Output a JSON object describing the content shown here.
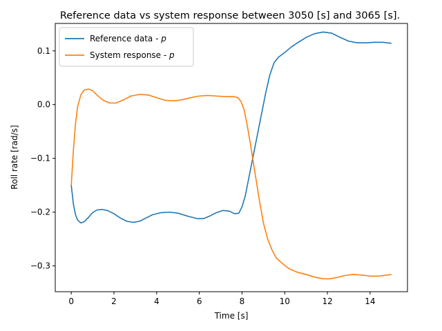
{
  "chart_data": {
    "type": "line",
    "title": "Reference data vs system response between 3050 [s] and 3065 [s].",
    "xlabel": "Time [s]",
    "ylabel": "Roll rate [rad/s]",
    "xlim": [
      -0.75,
      15.75
    ],
    "ylim": [
      -0.348,
      0.151
    ],
    "xticks": [
      0,
      2,
      4,
      6,
      8,
      10,
      12,
      14
    ],
    "yticks": [
      -0.3,
      -0.2,
      -0.1,
      0.0,
      0.1
    ],
    "ytick_labels": [
      "−0.3",
      "−0.2",
      "−0.1",
      "0.0",
      "0.1"
    ],
    "grid": false,
    "legend": "top-left",
    "series": [
      {
        "name_prefix": "Reference data - ",
        "name_symbol": "p",
        "color": "#1f77b4",
        "points": [
          [
            0.0,
            -0.15
          ],
          [
            0.1,
            -0.185
          ],
          [
            0.2,
            -0.205
          ],
          [
            0.3,
            -0.215
          ],
          [
            0.45,
            -0.22
          ],
          [
            0.6,
            -0.218
          ],
          [
            0.8,
            -0.21
          ],
          [
            1.0,
            -0.201
          ],
          [
            1.2,
            -0.196
          ],
          [
            1.45,
            -0.195
          ],
          [
            1.7,
            -0.197
          ],
          [
            2.0,
            -0.203
          ],
          [
            2.3,
            -0.211
          ],
          [
            2.6,
            -0.217
          ],
          [
            2.9,
            -0.219
          ],
          [
            3.2,
            -0.217
          ],
          [
            3.5,
            -0.211
          ],
          [
            3.8,
            -0.205
          ],
          [
            4.2,
            -0.201
          ],
          [
            4.6,
            -0.2
          ],
          [
            5.0,
            -0.202
          ],
          [
            5.5,
            -0.208
          ],
          [
            5.9,
            -0.212
          ],
          [
            6.2,
            -0.212
          ],
          [
            6.5,
            -0.207
          ],
          [
            6.8,
            -0.201
          ],
          [
            7.1,
            -0.197
          ],
          [
            7.4,
            -0.198
          ],
          [
            7.65,
            -0.203
          ],
          [
            7.85,
            -0.202
          ],
          [
            8.0,
            -0.19
          ],
          [
            8.15,
            -0.17
          ],
          [
            8.3,
            -0.14
          ],
          [
            8.5,
            -0.1
          ],
          [
            8.7,
            -0.06
          ],
          [
            8.9,
            -0.02
          ],
          [
            9.1,
            0.02
          ],
          [
            9.3,
            0.055
          ],
          [
            9.5,
            0.078
          ],
          [
            9.7,
            0.088
          ],
          [
            10.0,
            0.097
          ],
          [
            10.3,
            0.107
          ],
          [
            10.6,
            0.115
          ],
          [
            11.0,
            0.125
          ],
          [
            11.4,
            0.132
          ],
          [
            11.8,
            0.135
          ],
          [
            12.2,
            0.133
          ],
          [
            12.6,
            0.125
          ],
          [
            13.0,
            0.118
          ],
          [
            13.4,
            0.115
          ],
          [
            13.8,
            0.115
          ],
          [
            14.2,
            0.116
          ],
          [
            14.6,
            0.116
          ],
          [
            15.0,
            0.114
          ]
        ]
      },
      {
        "name_prefix": "System response - ",
        "name_symbol": "p",
        "color": "#ff7f0e",
        "points": [
          [
            0.0,
            -0.15
          ],
          [
            0.1,
            -0.085
          ],
          [
            0.2,
            -0.035
          ],
          [
            0.3,
            -0.003
          ],
          [
            0.45,
            0.018
          ],
          [
            0.6,
            0.027
          ],
          [
            0.8,
            0.029
          ],
          [
            1.0,
            0.026
          ],
          [
            1.2,
            0.018
          ],
          [
            1.5,
            0.008
          ],
          [
            1.8,
            0.003
          ],
          [
            2.1,
            0.003
          ],
          [
            2.4,
            0.008
          ],
          [
            2.8,
            0.016
          ],
          [
            3.2,
            0.019
          ],
          [
            3.6,
            0.018
          ],
          [
            4.0,
            0.013
          ],
          [
            4.4,
            0.008
          ],
          [
            4.8,
            0.007
          ],
          [
            5.2,
            0.009
          ],
          [
            5.6,
            0.013
          ],
          [
            6.0,
            0.016
          ],
          [
            6.4,
            0.017
          ],
          [
            6.8,
            0.016
          ],
          [
            7.2,
            0.015
          ],
          [
            7.6,
            0.015
          ],
          [
            7.8,
            0.013
          ],
          [
            7.95,
            0.006
          ],
          [
            8.1,
            -0.01
          ],
          [
            8.25,
            -0.04
          ],
          [
            8.4,
            -0.075
          ],
          [
            8.6,
            -0.125
          ],
          [
            8.8,
            -0.175
          ],
          [
            9.0,
            -0.22
          ],
          [
            9.2,
            -0.25
          ],
          [
            9.4,
            -0.27
          ],
          [
            9.6,
            -0.285
          ],
          [
            9.9,
            -0.296
          ],
          [
            10.2,
            -0.305
          ],
          [
            10.6,
            -0.312
          ],
          [
            11.0,
            -0.316
          ],
          [
            11.4,
            -0.321
          ],
          [
            11.8,
            -0.324
          ],
          [
            12.1,
            -0.324
          ],
          [
            12.4,
            -0.322
          ],
          [
            12.8,
            -0.318
          ],
          [
            13.2,
            -0.316
          ],
          [
            13.6,
            -0.317
          ],
          [
            14.0,
            -0.319
          ],
          [
            14.4,
            -0.319
          ],
          [
            14.8,
            -0.317
          ],
          [
            15.0,
            -0.316
          ]
        ]
      }
    ]
  }
}
